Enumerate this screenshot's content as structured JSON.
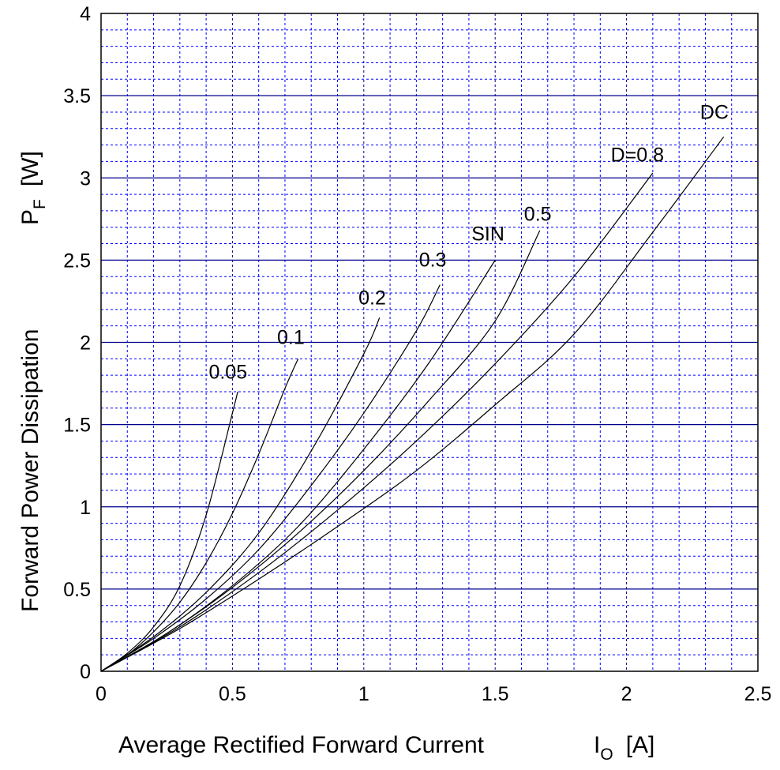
{
  "chart_data": {
    "type": "line",
    "title": "",
    "xlabel": "Average Rectified Forward Current",
    "xlabel_symbol": "I",
    "xlabel_subscript": "O",
    "xlabel_unit": "[A]",
    "ylabel": "Forward Power Dissipation",
    "ylabel_symbol": "P",
    "ylabel_subscript": "F",
    "ylabel_unit": "[W]",
    "xlim": [
      0,
      2.5
    ],
    "ylim": [
      0,
      4
    ],
    "x_ticks": [
      0,
      0.5,
      1,
      1.5,
      2,
      2.5
    ],
    "x_tick_labels": [
      "0",
      "0.5",
      "1",
      "1.5",
      "2",
      "2.5"
    ],
    "y_ticks": [
      0,
      0.5,
      1,
      1.5,
      2,
      2.5,
      3,
      3.5,
      4
    ],
    "y_tick_labels": [
      "0",
      "0.5",
      "1",
      "1.5",
      "2",
      "2.5",
      "3",
      "3.5",
      "4"
    ],
    "grid": true,
    "colors": {
      "major_grid": "#00008b",
      "minor_grid": "#0000ff",
      "curves": "#000000",
      "frame": "#000000"
    },
    "series": [
      {
        "name": "0.05",
        "x": [
          0,
          0.1,
          0.2,
          0.3,
          0.4,
          0.5,
          0.52
        ],
        "y": [
          0,
          0.11,
          0.27,
          0.52,
          0.95,
          1.57,
          1.7
        ]
      },
      {
        "name": "0.1",
        "x": [
          0,
          0.1,
          0.2,
          0.3,
          0.4,
          0.5,
          0.6,
          0.7,
          0.75
        ],
        "y": [
          0,
          0.1,
          0.24,
          0.42,
          0.66,
          0.96,
          1.32,
          1.72,
          1.9
        ]
      },
      {
        "name": "0.2",
        "x": [
          0,
          0.2,
          0.4,
          0.6,
          0.8,
          1.0,
          1.06
        ],
        "y": [
          0,
          0.21,
          0.48,
          0.84,
          1.34,
          1.93,
          2.15
        ]
      },
      {
        "name": "0.3",
        "x": [
          0,
          0.2,
          0.4,
          0.6,
          0.8,
          1.0,
          1.2,
          1.29
        ],
        "y": [
          0,
          0.2,
          0.44,
          0.74,
          1.13,
          1.57,
          2.07,
          2.35
        ]
      },
      {
        "name": "SIN",
        "x": [
          0,
          0.25,
          0.5,
          0.75,
          1.0,
          1.25,
          1.5
        ],
        "y": [
          0,
          0.23,
          0.52,
          0.88,
          1.35,
          1.88,
          2.5
        ]
      },
      {
        "name": "0.5",
        "x": [
          0,
          0.25,
          0.5,
          0.75,
          1.0,
          1.25,
          1.5,
          1.67
        ],
        "y": [
          0,
          0.23,
          0.51,
          0.84,
          1.22,
          1.65,
          2.13,
          2.68
        ]
      },
      {
        "name": "D=0.8",
        "x": [
          0,
          0.3,
          0.6,
          0.9,
          1.2,
          1.5,
          1.8,
          2.1
        ],
        "y": [
          0,
          0.27,
          0.6,
          0.98,
          1.4,
          1.87,
          2.4,
          3.03
        ]
      },
      {
        "name": "DC",
        "x": [
          0,
          0.3,
          0.6,
          0.9,
          1.2,
          1.5,
          1.8,
          2.1,
          2.37
        ],
        "y": [
          0,
          0.26,
          0.56,
          0.88,
          1.22,
          1.62,
          2.05,
          2.67,
          3.25
        ]
      }
    ],
    "labels": [
      {
        "text": "0.05",
        "x": 0.41,
        "y": 1.78
      },
      {
        "text": "0.1",
        "x": 0.67,
        "y": 1.99
      },
      {
        "text": "0.2",
        "x": 0.98,
        "y": 2.23
      },
      {
        "text": "0.3",
        "x": 1.21,
        "y": 2.46
      },
      {
        "text": "SIN",
        "x": 1.41,
        "y": 2.62
      },
      {
        "text": "0.5",
        "x": 1.61,
        "y": 2.74
      },
      {
        "text": "D=0.8",
        "x": 1.94,
        "y": 3.1
      },
      {
        "text": "DC",
        "x": 2.28,
        "y": 3.36
      }
    ]
  }
}
